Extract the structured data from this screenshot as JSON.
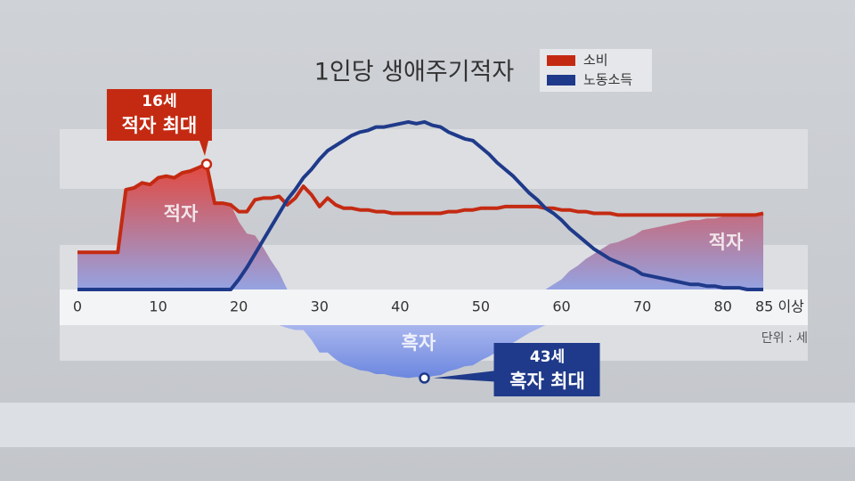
{
  "chart_data": {
    "type": "line",
    "title": "1인당 생애주기적자",
    "x": [
      0,
      1,
      2,
      3,
      4,
      5,
      6,
      7,
      8,
      9,
      10,
      11,
      12,
      13,
      14,
      15,
      16,
      17,
      18,
      19,
      20,
      21,
      22,
      23,
      24,
      25,
      26,
      27,
      28,
      29,
      30,
      31,
      32,
      33,
      34,
      35,
      36,
      37,
      38,
      39,
      40,
      41,
      42,
      43,
      44,
      45,
      46,
      47,
      48,
      49,
      50,
      51,
      52,
      53,
      54,
      55,
      56,
      57,
      58,
      59,
      60,
      61,
      62,
      63,
      64,
      65,
      66,
      67,
      68,
      69,
      70,
      71,
      72,
      73,
      74,
      75,
      76,
      77,
      78,
      79,
      80,
      81,
      82,
      83,
      84,
      85
    ],
    "xlim": [
      0,
      85
    ],
    "xticks": [
      0,
      10,
      20,
      30,
      40,
      50,
      60,
      70,
      80,
      {
        "value": 85,
        "label": "85 이상"
      }
    ],
    "ylim": [
      0,
      100
    ],
    "series": [
      {
        "name": "소비",
        "color": "#c42a12",
        "values": [
          22,
          22,
          22,
          22,
          22,
          22,
          59,
          60,
          63,
          62,
          66,
          67,
          66,
          69,
          70,
          72,
          74,
          51,
          51,
          50,
          46,
          46,
          53,
          54,
          54,
          55,
          50,
          54,
          61,
          56,
          49,
          54,
          50,
          48,
          48,
          47,
          47,
          46,
          46,
          45,
          45,
          45,
          45,
          45,
          45,
          45,
          46,
          46,
          47,
          47,
          48,
          48,
          48,
          49,
          49,
          49,
          49,
          49,
          48,
          48,
          47,
          47,
          46,
          46,
          45,
          45,
          45,
          44,
          44,
          44,
          44,
          44,
          44,
          44,
          44,
          44,
          44,
          44,
          44,
          44,
          44,
          44,
          44,
          44,
          44,
          45
        ]
      },
      {
        "name": "노동소득",
        "color": "#1f3a8a",
        "values": [
          0,
          0,
          0,
          0,
          0,
          0,
          0,
          0,
          0,
          0,
          0,
          0,
          0,
          0,
          0,
          0,
          0,
          0,
          0,
          0,
          6,
          13,
          21,
          29,
          37,
          45,
          53,
          59,
          66,
          71,
          77,
          82,
          85,
          88,
          91,
          93,
          94,
          96,
          96,
          97,
          98,
          99,
          98,
          99,
          97,
          96,
          93,
          91,
          89,
          88,
          84,
          80,
          75,
          71,
          67,
          62,
          57,
          53,
          48,
          45,
          41,
          36,
          32,
          28,
          24,
          21,
          18,
          16,
          14,
          12,
          9,
          8,
          7,
          6,
          5,
          4,
          3,
          3,
          2,
          2,
          1,
          1,
          1,
          0,
          0,
          0
        ]
      }
    ],
    "area_labels": [
      "적자",
      "적자",
      "흑자"
    ],
    "annotations": [
      {
        "x": 16,
        "lines": [
          "16세",
          "적자 최대"
        ]
      },
      {
        "x": 43,
        "lines": [
          "43세",
          "흑자 최대"
        ]
      }
    ],
    "unit_note": "단위 : 세"
  }
}
